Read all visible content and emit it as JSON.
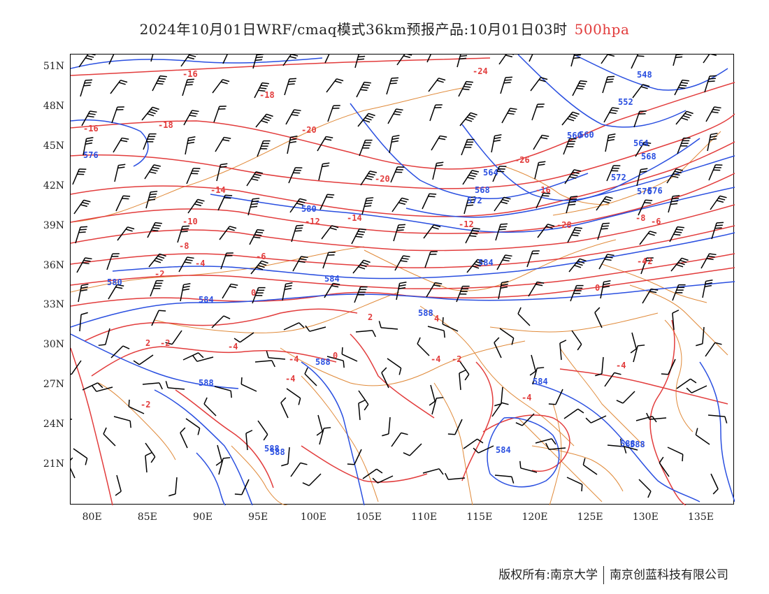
{
  "title": {
    "main": "2024年10月01日WRF/cmaq模式36km预报产品:10月01日03时",
    "level": "500hpa",
    "level_color": "#e23c3c"
  },
  "map": {
    "lon_range": [
      78,
      138
    ],
    "lat_range": [
      18,
      52
    ],
    "lat_labels": [
      "51N",
      "48N",
      "45N",
      "42N",
      "39N",
      "36N",
      "33N",
      "30N",
      "27N",
      "24N",
      "21N"
    ],
    "lon_labels": [
      "80E",
      "85E",
      "90E",
      "95E",
      "100E",
      "105E",
      "110E",
      "115E",
      "120E",
      "125E",
      "130E",
      "135E"
    ],
    "colors": {
      "temperature_contour": "#e23c3c",
      "height_contour": "#2a4fe0",
      "boundary": "#e08a3a",
      "wind_barb": "#000000"
    },
    "temperature_labels": [
      "-16",
      "-18",
      "-16",
      "-18",
      "-20",
      "-24",
      "-26",
      "-28",
      "-20",
      "-14",
      "-16",
      "-12",
      "-10",
      "-12",
      "-14",
      "-8",
      "-6",
      "-4",
      "-2",
      "0",
      "-6",
      "-8",
      "0",
      "-2",
      "-4",
      "2",
      "-2",
      "-4",
      "-4",
      "-2",
      "-4",
      "-4",
      "-4",
      "-2",
      "0",
      "2",
      "4",
      "-4"
    ],
    "height_labels": [
      "576",
      "580",
      "584",
      "588",
      "588",
      "584",
      "560",
      "564",
      "568",
      "572",
      "576",
      "552",
      "548",
      "560",
      "564",
      "568",
      "572",
      "576",
      "580",
      "584",
      "588",
      "588",
      "584",
      "588",
      "588",
      "584",
      "588"
    ]
  },
  "footer": {
    "left": "版权所有:南京大学",
    "right": "南京创蓝科技有限公司"
  }
}
